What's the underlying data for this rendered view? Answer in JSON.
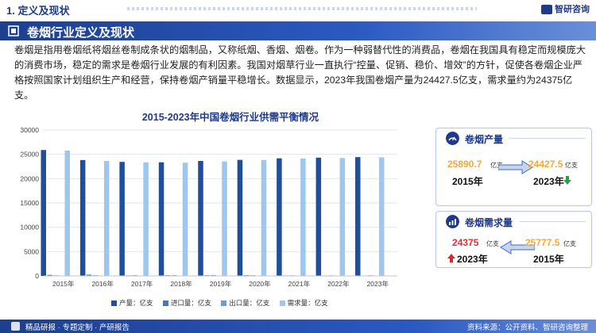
{
  "header": {
    "section_number_title": "1. 定义及现状",
    "brand": "智研咨询"
  },
  "section": {
    "title": "卷烟行业定义及现状"
  },
  "description": "卷烟是指用卷烟纸将烟丝卷制成条状的烟制品，又称纸烟、香烟、烟卷。作为一种弱替代性的消费品，卷烟在我国具有稳定而规模庞大的消费市场，稳定的需求是卷烟行业发展的有利因素。我国对烟草行业一直执行“控量、促销、稳价、增效”的方针，促使各卷烟企业严格按照国家计划组织生产和经营，保持卷烟产销量平稳增长。数据显示，2023年我国卷烟产量为24427.5亿支，需求量约为24375亿支。",
  "colors": {
    "production": "#1f4e9c",
    "import": "#3f78c8",
    "export": "#6c9be0",
    "demand": "#9fc7ee",
    "accent": "#1f3a8a"
  },
  "chart_data": {
    "type": "bar",
    "title": "2015-2023年中国卷烟行业供需平衡情况",
    "categories": [
      "2015年",
      "2016年",
      "2017年",
      "2018年",
      "2019年",
      "2020年",
      "2021年",
      "2022年",
      "2023年"
    ],
    "ylim": [
      0,
      30000
    ],
    "yticks": [
      "0",
      "5000",
      "10000",
      "15000",
      "20000",
      "25000",
      "30000"
    ],
    "series": [
      {
        "name": "产量：亿支",
        "values": [
          25890.7,
          23825.5,
          23448.3,
          23358.6,
          23642.5,
          23863.7,
          24182.4,
          24321.5,
          24427.5
        ]
      },
      {
        "name": "进口量：亿支",
        "values": [
          210,
          250,
          120,
          150,
          140,
          160,
          100,
          90,
          80
        ]
      },
      {
        "name": "出口量：亿支",
        "values": [
          130,
          150,
          160,
          170,
          180,
          150,
          120,
          110,
          130
        ]
      },
      {
        "name": "需求量：亿支",
        "values": [
          25777.5,
          23640,
          23350,
          23290,
          23550,
          23840,
          24150,
          24250,
          24375
        ]
      }
    ],
    "grid": true,
    "legend": "bottom"
  },
  "cards": [
    {
      "title": "卷烟产量",
      "left_value": "25890.7",
      "left_unit": "亿支",
      "left_year": "2015年",
      "right_value": "24427.5",
      "right_unit": "亿支",
      "right_year": "2023年",
      "trend": "down"
    },
    {
      "title": "卷烟需求量",
      "left_value": "24375",
      "left_unit": "亿支",
      "left_year": "2023年",
      "right_value": "25777.5",
      "right_unit": "亿支",
      "right_year": "2015年",
      "trend": "up"
    }
  ],
  "footer": {
    "left": "精品研报 · 专题定制 · 产研报告",
    "right": "资料来源：公开资料、智研咨询整理"
  }
}
